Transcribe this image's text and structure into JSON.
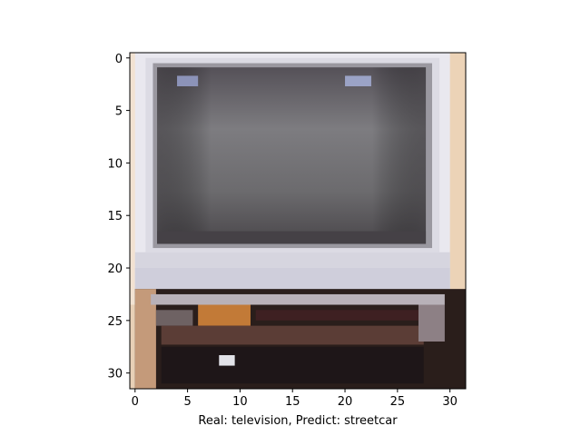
{
  "figure": {
    "xlabel": "Real: television, Predict: streetcar",
    "image_size": [
      32,
      32
    ]
  },
  "axes": {
    "x_ticks": [
      "0",
      "5",
      "10",
      "15",
      "20",
      "25",
      "30"
    ],
    "y_ticks": [
      "0",
      "5",
      "10",
      "15",
      "20",
      "25",
      "30"
    ],
    "frame_color": "#000000"
  },
  "image": {
    "description_colors": {
      "wall": "#e8d0b6",
      "tv_bezel": "#d9d9e6",
      "screen": "#6f7073",
      "cabinet": "#2a1e1b",
      "accent": "#c27a37"
    }
  }
}
